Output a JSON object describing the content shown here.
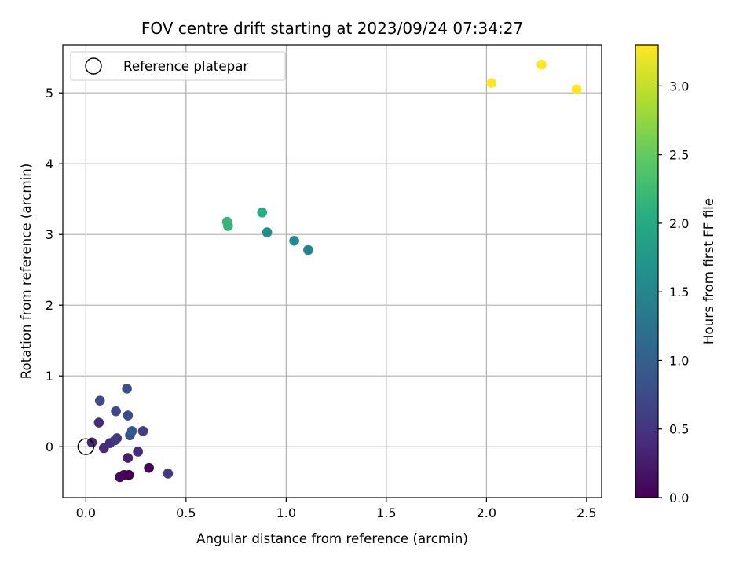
{
  "chart_data": {
    "type": "scatter",
    "title": "FOV centre drift starting at 2023/09/24 07:34:27",
    "xlabel": "Angular distance from reference (arcmin)",
    "ylabel": "Rotation from reference (arcmin)",
    "colorbar_label": "Hours from first FF file",
    "colormap": "viridis",
    "xlim": [
      -0.115,
      2.575
    ],
    "ylim": [
      -0.72,
      5.68
    ],
    "clim": [
      0.0,
      3.3
    ],
    "xticks": [
      0.0,
      0.5,
      1.0,
      1.5,
      2.0,
      2.5
    ],
    "xtick_labels": [
      "0.0",
      "0.5",
      "1.0",
      "1.5",
      "2.0",
      "2.5"
    ],
    "yticks": [
      0,
      1,
      2,
      3,
      4,
      5
    ],
    "ytick_labels": [
      "0",
      "1",
      "2",
      "3",
      "4",
      "5"
    ],
    "cticks": [
      0.0,
      0.5,
      1.0,
      1.5,
      2.0,
      2.5,
      3.0
    ],
    "ctick_labels": [
      "0.0",
      "0.5",
      "1.0",
      "1.5",
      "2.0",
      "2.5",
      "3.0"
    ],
    "grid": true,
    "legend": {
      "placement": "top-left",
      "entries": [
        "Reference platepar"
      ]
    },
    "reference_point": {
      "name": "Reference platepar",
      "x": 0.0,
      "y": 0.0,
      "marker": "open-circle"
    },
    "points": [
      {
        "x": 0.03,
        "y": 0.06,
        "c": 0.35
      },
      {
        "x": 0.065,
        "y": 0.34,
        "c": 0.45
      },
      {
        "x": 0.07,
        "y": 0.65,
        "c": 0.75
      },
      {
        "x": 0.09,
        "y": -0.02,
        "c": 0.4
      },
      {
        "x": 0.12,
        "y": 0.05,
        "c": 0.45
      },
      {
        "x": 0.145,
        "y": 0.09,
        "c": 0.5
      },
      {
        "x": 0.15,
        "y": 0.5,
        "c": 0.7
      },
      {
        "x": 0.155,
        "y": 0.12,
        "c": 0.55
      },
      {
        "x": 0.17,
        "y": -0.43,
        "c": 0.1
      },
      {
        "x": 0.19,
        "y": -0.4,
        "c": 0.05
      },
      {
        "x": 0.205,
        "y": 0.82,
        "c": 0.8
      },
      {
        "x": 0.21,
        "y": -0.16,
        "c": 0.3
      },
      {
        "x": 0.21,
        "y": 0.44,
        "c": 0.75
      },
      {
        "x": 0.215,
        "y": -0.4,
        "c": 0.0
      },
      {
        "x": 0.22,
        "y": 0.16,
        "c": 0.85
      },
      {
        "x": 0.23,
        "y": 0.22,
        "c": 0.9
      },
      {
        "x": 0.26,
        "y": -0.07,
        "c": 0.4
      },
      {
        "x": 0.285,
        "y": 0.22,
        "c": 0.6
      },
      {
        "x": 0.315,
        "y": -0.3,
        "c": 0.05
      },
      {
        "x": 0.41,
        "y": -0.38,
        "c": 0.55
      },
      {
        "x": 0.705,
        "y": 3.18,
        "c": 2.2
      },
      {
        "x": 0.71,
        "y": 3.12,
        "c": 2.15
      },
      {
        "x": 0.88,
        "y": 3.31,
        "c": 2.05
      },
      {
        "x": 0.905,
        "y": 3.03,
        "c": 1.6
      },
      {
        "x": 1.04,
        "y": 2.91,
        "c": 1.55
      },
      {
        "x": 1.11,
        "y": 2.78,
        "c": 1.5
      },
      {
        "x": 2.025,
        "y": 5.14,
        "c": 3.3
      },
      {
        "x": 2.275,
        "y": 5.4,
        "c": 3.3
      },
      {
        "x": 2.45,
        "y": 5.05,
        "c": 3.3
      }
    ]
  }
}
